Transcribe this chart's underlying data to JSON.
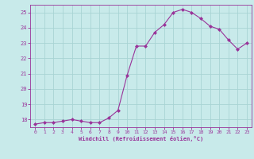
{
  "x": [
    0,
    1,
    2,
    3,
    4,
    5,
    6,
    7,
    8,
    9,
    10,
    11,
    12,
    13,
    14,
    15,
    16,
    17,
    18,
    19,
    20,
    21,
    22,
    23
  ],
  "y": [
    17.7,
    17.8,
    17.8,
    17.9,
    18.0,
    17.9,
    17.8,
    17.8,
    18.1,
    18.6,
    20.9,
    22.8,
    22.8,
    23.7,
    24.2,
    25.0,
    25.2,
    25.0,
    24.6,
    24.1,
    23.9,
    23.2,
    22.6,
    23.0
  ],
  "line_color": "#993399",
  "marker_color": "#993399",
  "bg_color": "#c8eaea",
  "grid_color": "#a8d4d4",
  "xlabel": "Windchill (Refroidissement éolien,°C)",
  "xlabel_color": "#993399",
  "tick_color": "#993399",
  "spine_color": "#993399",
  "ylim": [
    17.5,
    25.5
  ],
  "xlim": [
    -0.5,
    23.5
  ],
  "yticks": [
    18,
    19,
    20,
    21,
    22,
    23,
    24,
    25
  ],
  "xticks": [
    0,
    1,
    2,
    3,
    4,
    5,
    6,
    7,
    8,
    9,
    10,
    11,
    12,
    13,
    14,
    15,
    16,
    17,
    18,
    19,
    20,
    21,
    22,
    23
  ]
}
